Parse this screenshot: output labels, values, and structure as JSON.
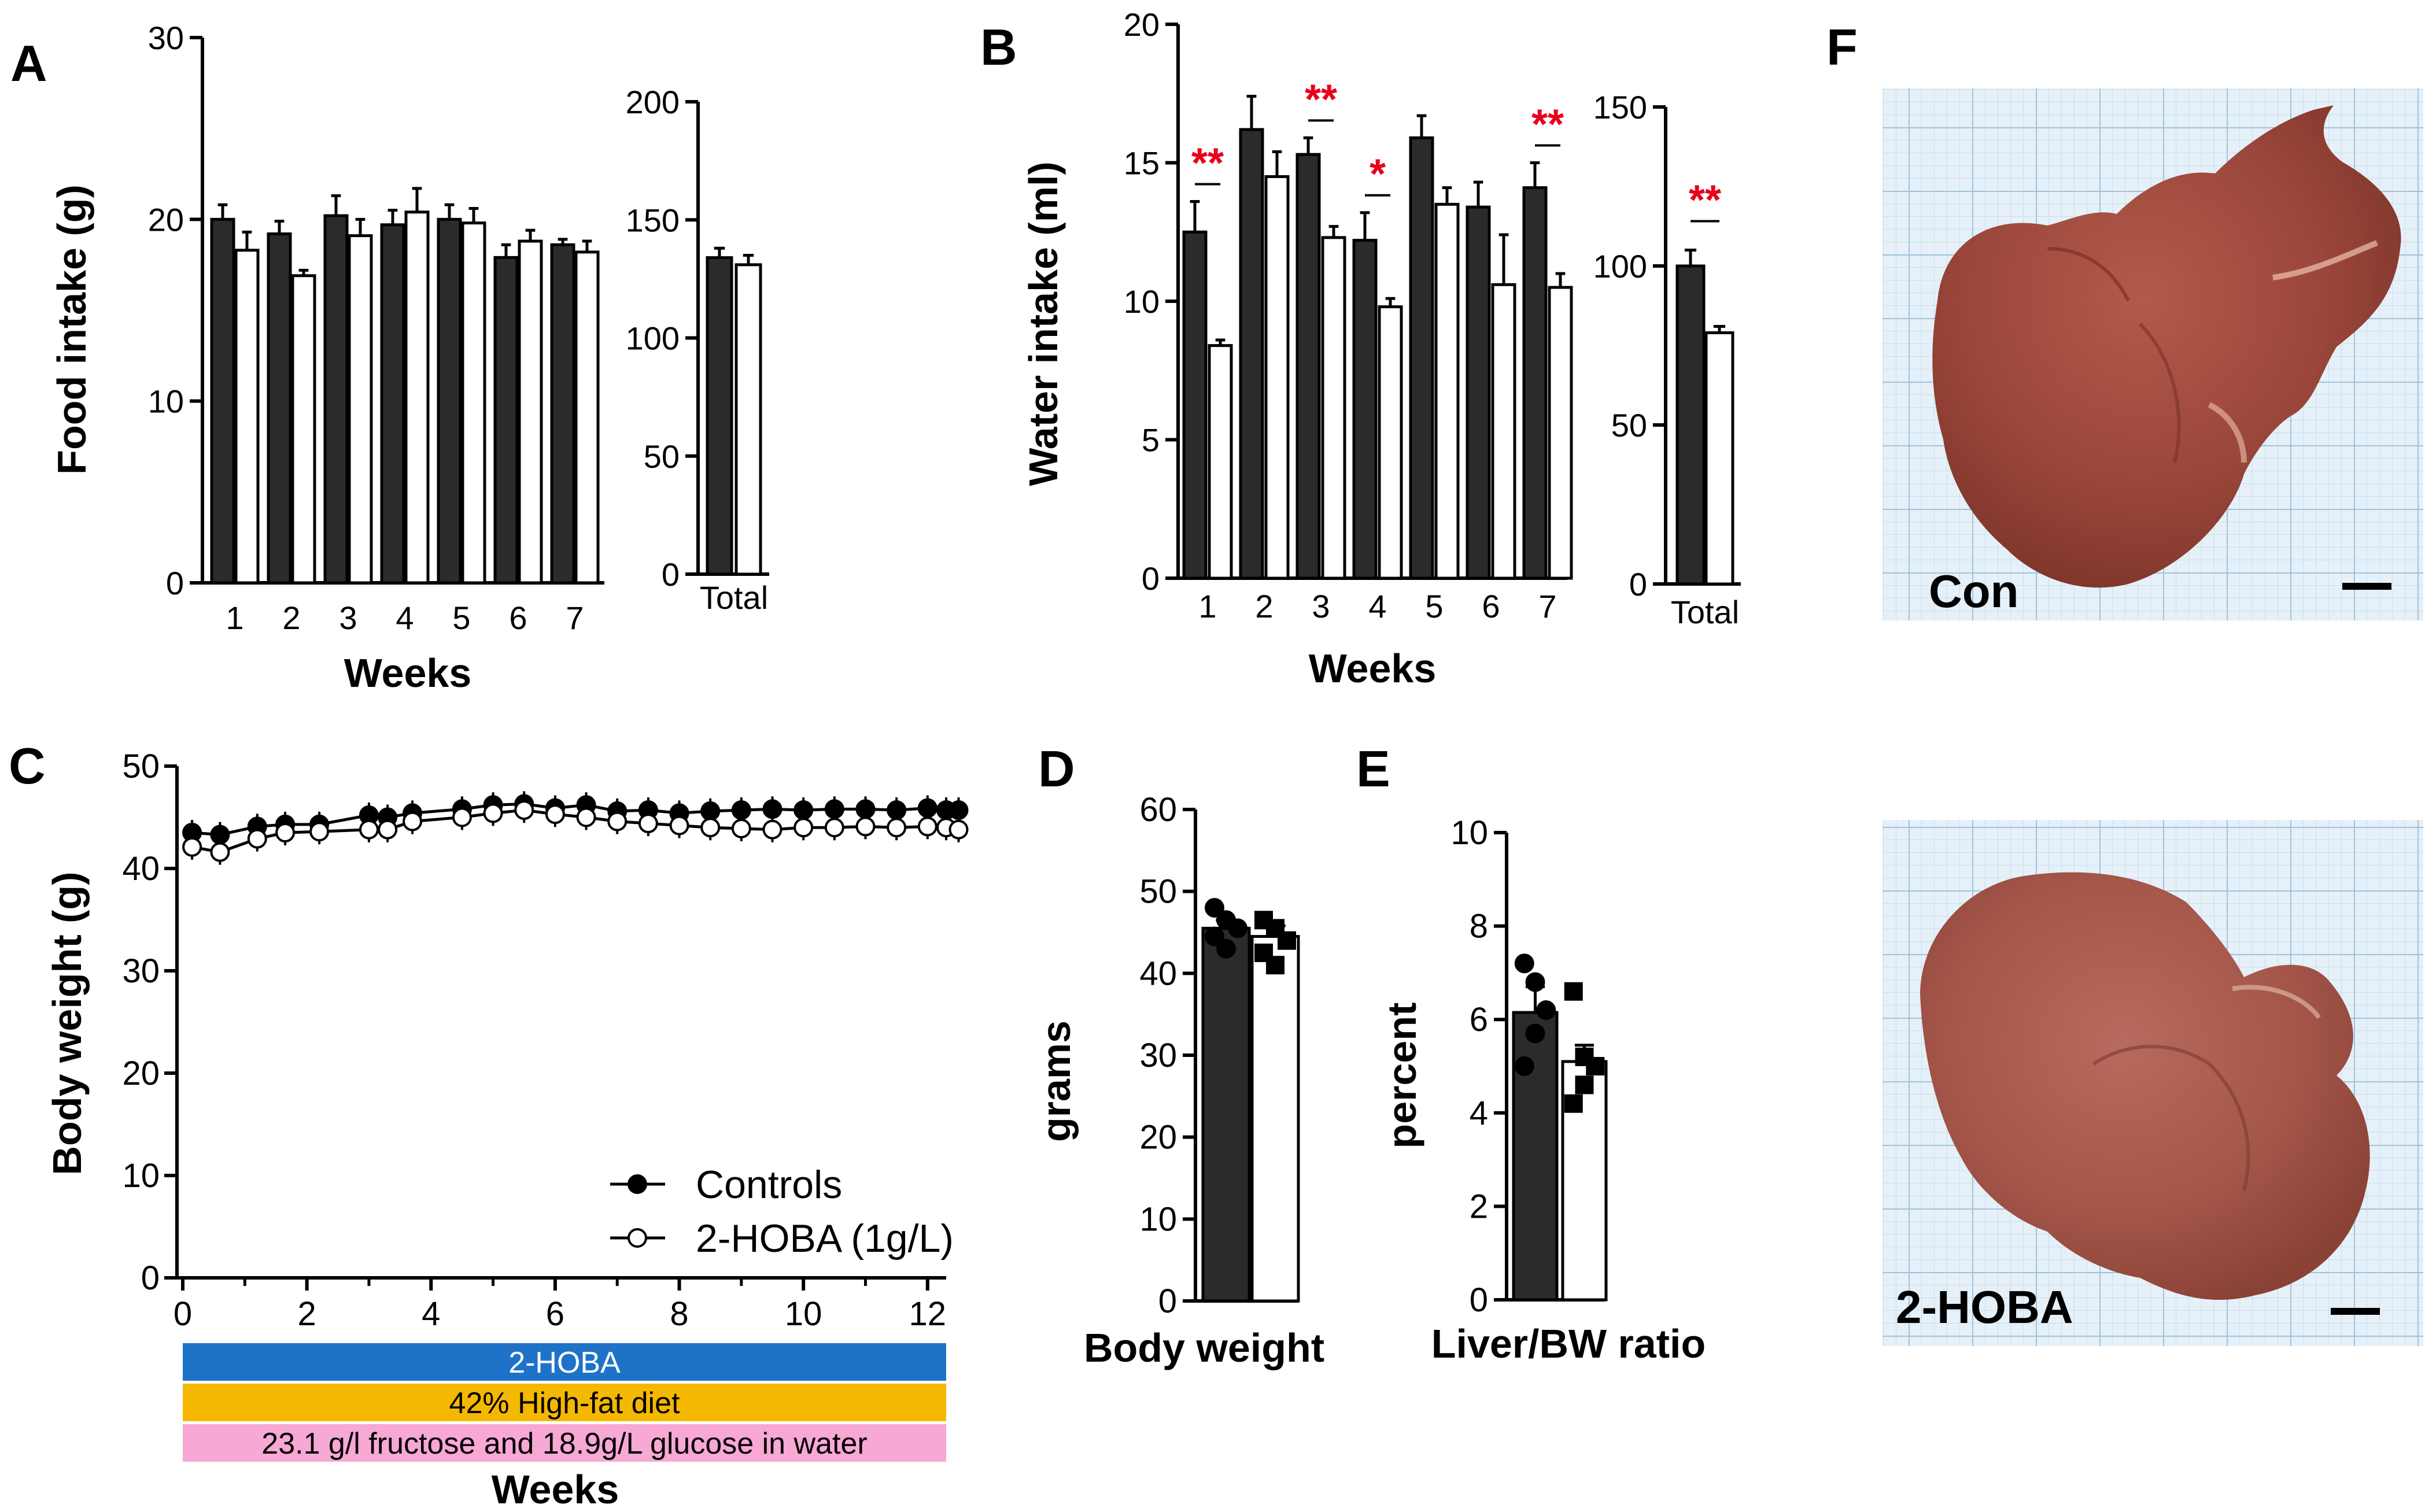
{
  "panel_letters": {
    "a": "A",
    "b": "B",
    "c": "C",
    "d": "D",
    "e": "E",
    "f": "F"
  },
  "colors": {
    "control_bar": "#2b2b2b",
    "treated_bar": "#ffffff",
    "significance": "#e8001c",
    "timeline_blue": "#1e73c8",
    "timeline_orange": "#f5b800",
    "timeline_pink": "#f7a8d4",
    "liver": "#a24a3e",
    "grid_paper": "#dcebf5"
  },
  "chart_data": [
    {
      "id": "A-weekly",
      "type": "bar",
      "title": "",
      "xlabel": "Weeks",
      "ylabel": "Food intake (g)",
      "ylim": [
        0,
        30
      ],
      "yticks": [
        0,
        10,
        20,
        30
      ],
      "categories": [
        "1",
        "2",
        "3",
        "4",
        "5",
        "6",
        "7"
      ],
      "series": [
        {
          "name": "Controls",
          "values": [
            20.0,
            19.2,
            20.2,
            19.7,
            20.0,
            17.9,
            18.6
          ],
          "errors": [
            0.8,
            0.7,
            1.1,
            0.8,
            0.8,
            0.7,
            0.3
          ]
        },
        {
          "name": "2-HOBA (1g/L)",
          "values": [
            18.3,
            16.9,
            19.1,
            20.4,
            19.8,
            18.8,
            18.2
          ],
          "errors": [
            1.0,
            0.3,
            0.9,
            1.3,
            0.8,
            0.6,
            0.6
          ]
        }
      ]
    },
    {
      "id": "A-total",
      "type": "bar",
      "xlabel": "",
      "ylabel": "",
      "ylim": [
        0,
        200
      ],
      "yticks": [
        0,
        50,
        100,
        150,
        200
      ],
      "categories": [
        "Total"
      ],
      "series": [
        {
          "name": "Controls",
          "values": [
            134
          ],
          "errors": [
            4
          ]
        },
        {
          "name": "2-HOBA (1g/L)",
          "values": [
            131
          ],
          "errors": [
            4
          ]
        }
      ]
    },
    {
      "id": "B-weekly",
      "type": "bar",
      "title": "",
      "xlabel": "Weeks",
      "ylabel": "Water intake (ml)",
      "ylim": [
        0,
        20
      ],
      "yticks": [
        0,
        5,
        10,
        15,
        20
      ],
      "categories": [
        "1",
        "2",
        "3",
        "4",
        "5",
        "6",
        "7"
      ],
      "series": [
        {
          "name": "Controls",
          "values": [
            12.5,
            16.2,
            15.3,
            12.2,
            15.9,
            13.4,
            14.1
          ],
          "errors": [
            1.1,
            1.2,
            0.6,
            1.0,
            0.8,
            0.9,
            0.9
          ]
        },
        {
          "name": "2-HOBA (1g/L)",
          "values": [
            8.4,
            14.5,
            12.3,
            9.8,
            13.5,
            10.6,
            10.5
          ],
          "errors": [
            0.2,
            0.9,
            0.4,
            0.3,
            0.6,
            1.8,
            0.5
          ]
        }
      ],
      "significance": [
        "**",
        "",
        "**",
        "*",
        "",
        "",
        "**"
      ]
    },
    {
      "id": "B-total",
      "type": "bar",
      "xlabel": "",
      "ylabel": "",
      "ylim": [
        0,
        150
      ],
      "yticks": [
        0,
        50,
        100,
        150
      ],
      "categories": [
        "Total"
      ],
      "series": [
        {
          "name": "Controls",
          "values": [
            100
          ],
          "errors": [
            5
          ]
        },
        {
          "name": "2-HOBA (1g/L)",
          "values": [
            79
          ],
          "errors": [
            2
          ]
        }
      ],
      "significance": [
        "**"
      ]
    },
    {
      "id": "C",
      "type": "line",
      "title": "",
      "xlabel": "Weeks",
      "ylabel": "Body weight (g)",
      "xlim": [
        0,
        12.3
      ],
      "xticks": [
        0,
        2,
        4,
        6,
        8,
        10,
        12
      ],
      "ylim": [
        0,
        50
      ],
      "yticks": [
        0,
        10,
        20,
        30,
        40,
        50
      ],
      "x": [
        0.15,
        0.6,
        1.2,
        1.65,
        2.2,
        3.0,
        3.3,
        3.7,
        4.5,
        5.0,
        5.5,
        6.0,
        6.5,
        7.0,
        7.5,
        8.0,
        8.5,
        9.0,
        9.5,
        10.0,
        10.5,
        11.0,
        11.5,
        12.0,
        12.3,
        12.5
      ],
      "series": [
        {
          "name": "Controls",
          "values": [
            43.5,
            43.3,
            44.1,
            44.3,
            44.3,
            45.2,
            45.0,
            45.4,
            45.8,
            46.2,
            46.3,
            45.9,
            46.2,
            45.6,
            45.7,
            45.4,
            45.6,
            45.7,
            45.8,
            45.7,
            45.8,
            45.8,
            45.7,
            45.9,
            45.7,
            45.7
          ]
        },
        {
          "name": "2-HOBA (1g/L)",
          "values": [
            42.1,
            41.6,
            42.9,
            43.5,
            43.6,
            43.8,
            43.8,
            44.6,
            45.0,
            45.4,
            45.7,
            45.3,
            45.0,
            44.6,
            44.4,
            44.2,
            44.0,
            43.9,
            43.8,
            44.0,
            44.0,
            44.1,
            44.0,
            44.1,
            44.0,
            43.8
          ]
        }
      ],
      "legend": [
        "Controls",
        "2-HOBA (1g/L)"
      ],
      "timeline": [
        "2-HOBA",
        "42% High-fat diet",
        "23.1 g/l fructose and 18.9g/L glucose in water"
      ]
    },
    {
      "id": "D",
      "type": "bar",
      "xlabel": "Body weight",
      "ylabel": "grams",
      "ylim": [
        0,
        60
      ],
      "yticks": [
        0,
        10,
        20,
        30,
        40,
        50,
        60
      ],
      "series": [
        {
          "name": "Controls",
          "values": [
            45.5
          ],
          "errors": [
            1.0
          ],
          "points": [
            48.0,
            46.5,
            45.5,
            44.5,
            43.0
          ]
        },
        {
          "name": "2-HOBA (1g/L)",
          "values": [
            44.5
          ],
          "errors": [
            1.3
          ],
          "points": [
            46.5,
            45.5,
            44.0,
            42.5,
            41.0
          ]
        }
      ]
    },
    {
      "id": "E",
      "type": "bar",
      "xlabel": "Liver/BW ratio",
      "ylabel": "percent",
      "ylim": [
        0,
        10
      ],
      "yticks": [
        0,
        2,
        4,
        6,
        8,
        10
      ],
      "series": [
        {
          "name": "Controls",
          "values": [
            6.15
          ],
          "errors": [
            0.55
          ],
          "points": [
            7.2,
            6.8,
            6.2,
            5.0,
            5.7
          ]
        },
        {
          "name": "2-HOBA (1g/L)",
          "values": [
            5.1
          ],
          "errors": [
            0.35
          ],
          "points": [
            6.6,
            5.2,
            5.0,
            4.2,
            4.6
          ]
        }
      ]
    }
  ],
  "photos": {
    "top_label": "Con",
    "bottom_label": "2-HOBA"
  }
}
